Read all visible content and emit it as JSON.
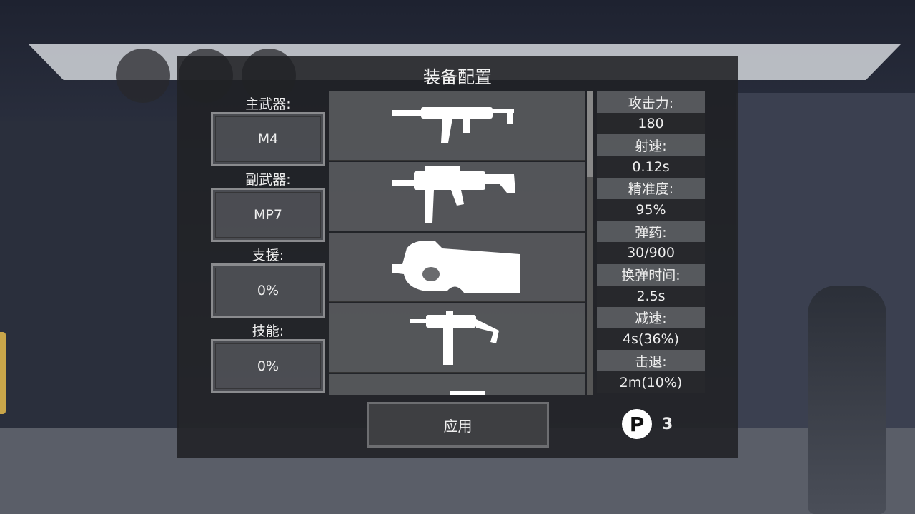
{
  "title": "装备配置",
  "slots": [
    {
      "label": "主武器:",
      "value": "M4"
    },
    {
      "label": "副武器:",
      "value": "MP7"
    },
    {
      "label": "支援:",
      "value": "0%"
    },
    {
      "label": "技能:",
      "value": "0%"
    }
  ],
  "weapons": [
    "mp5-silhouette-icon",
    "ump-silhouette-icon",
    "p90-silhouette-icon",
    "uzi-silhouette-icon",
    "m4-silhouette-icon"
  ],
  "scroll_position": 0,
  "stats": [
    {
      "label": "攻击力:",
      "value": "180"
    },
    {
      "label": "射速:",
      "value": "0.12s"
    },
    {
      "label": "精准度:",
      "value": "95%"
    },
    {
      "label": "弹药:",
      "value": "30/900"
    },
    {
      "label": "换弹时间:",
      "value": "2.5s"
    },
    {
      "label": "减速:",
      "value": "4s(36%)"
    },
    {
      "label": "击退:",
      "value": "2m(10%)"
    }
  ],
  "apply_label": "应用",
  "points": {
    "icon": "P",
    "value": "3"
  }
}
